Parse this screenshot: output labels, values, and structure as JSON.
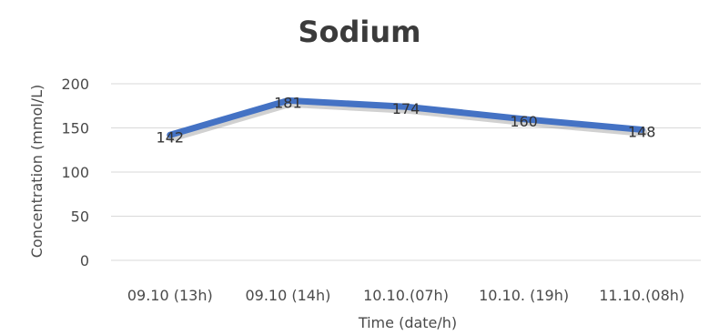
{
  "chart_data": {
    "type": "line",
    "title": "Sodium",
    "xlabel": "Time (date/h)",
    "ylabel": "Concentration (mmol/L)",
    "categories": [
      "09.10 (13h)",
      "09.10 (14h)",
      "10.10.(07h)",
      "10.10. (19h)",
      "11.10.(08h)"
    ],
    "series": [
      {
        "values": [
          142,
          181,
          174,
          160,
          148
        ],
        "color": "#4472c4"
      }
    ],
    "data_labels": [
      "142",
      "181",
      "174",
      "160",
      "148"
    ],
    "yticks": [
      0,
      50,
      100,
      150,
      200
    ],
    "ylim": [
      0,
      200
    ],
    "grid": true,
    "legend": "none"
  }
}
